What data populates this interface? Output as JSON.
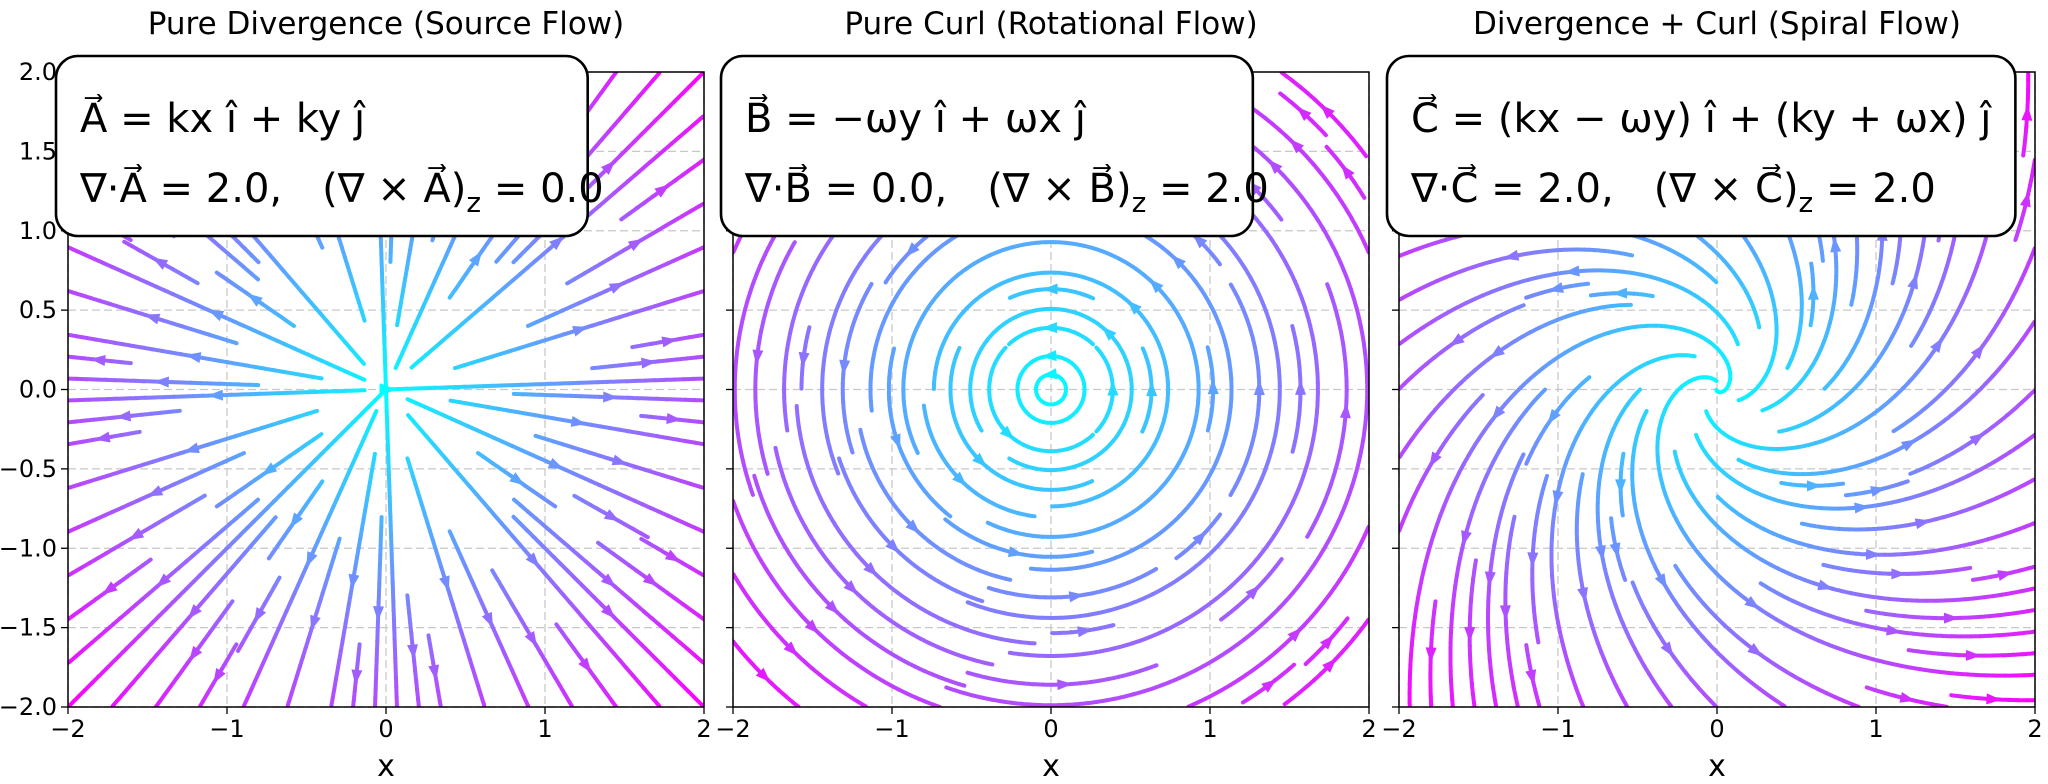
{
  "chart_data": [
    {
      "type": "streamplot",
      "title": "Pure Divergence (Source Flow)",
      "xlabel": "x",
      "xlim": [
        -2,
        2
      ],
      "ylim": [
        -2,
        2
      ],
      "xticks": [
        {
          "value": -2,
          "label": "−2"
        },
        {
          "value": -1,
          "label": "−1"
        },
        0,
        1,
        2
      ],
      "yticks": [
        {
          "value": -2,
          "label": "−2.0"
        },
        {
          "value": -1.5,
          "label": "−1.5"
        },
        {
          "value": -1,
          "label": "−1.0"
        },
        {
          "value": -0.5,
          "label": "−0.5"
        },
        {
          "value": 0,
          "label": "0.0"
        },
        {
          "value": 0.5,
          "label": "0.5"
        },
        {
          "value": 1,
          "label": "1.0"
        },
        {
          "value": 1.5,
          "label": "1.5"
        },
        {
          "value": 2,
          "label": "2.0"
        }
      ],
      "show_ytick_labels": true,
      "grid": true,
      "colormap": [
        "#00ffff",
        "#ff00ff"
      ],
      "formula": "A⃗ = kx î + ky ĵ",
      "divergence_label": "∇·A⃗ = ",
      "divergence": {
        "value": 2.0,
        "label": "2.0"
      },
      "separator": ",",
      "curl_label": "(∇ × A⃗)",
      "curl_subscript": "z",
      "equals": " = ",
      "curl": {
        "value": 0.0,
        "label": "0.0"
      }
    },
    {
      "type": "streamplot",
      "title": "Pure Curl (Rotational Flow)",
      "xlabel": "x",
      "xlim": [
        -2,
        2
      ],
      "ylim": [
        -2,
        2
      ],
      "xticks": [
        {
          "value": -2,
          "label": "−2"
        },
        {
          "value": -1,
          "label": "−1"
        },
        0,
        1,
        2
      ],
      "yticks": [
        -2,
        -1.5,
        -1,
        -0.5,
        0,
        0.5,
        1,
        1.5,
        2
      ],
      "show_ytick_labels": false,
      "grid": true,
      "colormap": [
        "#00ffff",
        "#ff00ff"
      ],
      "formula": "B⃗ = −ωy î + ωx ĵ",
      "divergence_label": "∇·B⃗ = ",
      "divergence": {
        "value": 0.0,
        "label": "0.0"
      },
      "separator": ",",
      "curl_label": "(∇ × B⃗)",
      "curl_subscript": "z",
      "equals": " = ",
      "curl": {
        "value": 2.0,
        "label": "2.0"
      }
    },
    {
      "type": "streamplot",
      "title": "Divergence + Curl (Spiral Flow)",
      "xlabel": "x",
      "xlim": [
        -2,
        2
      ],
      "ylim": [
        -2,
        2
      ],
      "xticks": [
        {
          "value": -2,
          "label": "−2"
        },
        {
          "value": -1,
          "label": "−1"
        },
        0,
        1,
        2
      ],
      "yticks": [
        -2,
        -1.5,
        -1,
        -0.5,
        0,
        0.5,
        1,
        1.5,
        2
      ],
      "show_ytick_labels": false,
      "grid": true,
      "colormap": [
        "#00ffff",
        "#ff00ff"
      ],
      "formula": "C⃗ = (kx − ωy) î + (ky + ωx) ĵ",
      "divergence_label": "∇·C⃗ = ",
      "divergence": {
        "value": 2.0,
        "label": "2.0"
      },
      "separator": ",",
      "curl_label": "(∇ × C⃗)",
      "curl_subscript": "z",
      "equals": " = ",
      "curl": {
        "value": 2.0,
        "label": "2.0"
      }
    }
  ]
}
